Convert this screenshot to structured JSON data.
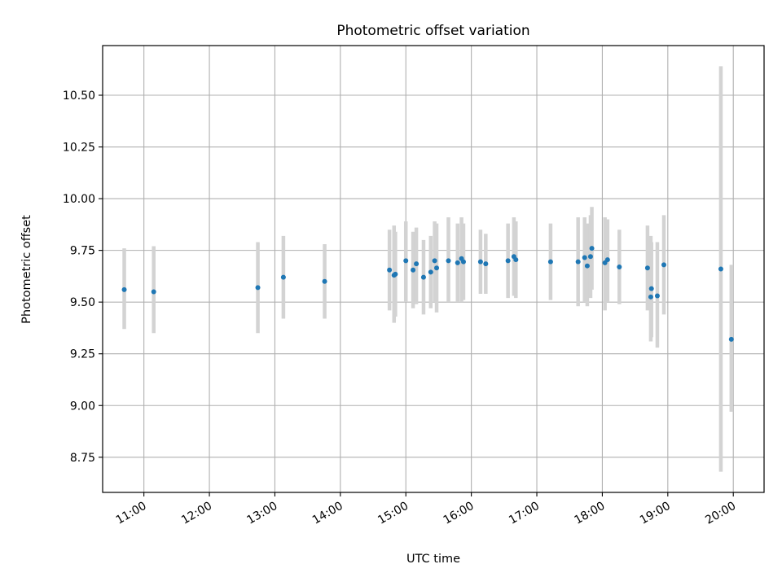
{
  "chart_data": {
    "type": "scatter",
    "title": "Photometric offset variation",
    "xlabel": "UTC time",
    "ylabel": "Photometric offset",
    "x_unit": "hours UTC",
    "xlim": [
      10.37,
      20.47
    ],
    "ylim": [
      8.58,
      10.74
    ],
    "grid": true,
    "x_ticks": [
      {
        "value": 11,
        "label": "11:00"
      },
      {
        "value": 12,
        "label": "12:00"
      },
      {
        "value": 13,
        "label": "13:00"
      },
      {
        "value": 14,
        "label": "14:00"
      },
      {
        "value": 15,
        "label": "15:00"
      },
      {
        "value": 16,
        "label": "16:00"
      },
      {
        "value": 17,
        "label": "17:00"
      },
      {
        "value": 18,
        "label": "18:00"
      },
      {
        "value": 19,
        "label": "19:00"
      },
      {
        "value": 20,
        "label": "20:00"
      }
    ],
    "y_ticks": [
      {
        "value": 8.75,
        "label": "8.75"
      },
      {
        "value": 9.0,
        "label": "9.00"
      },
      {
        "value": 9.25,
        "label": "9.25"
      },
      {
        "value": 9.5,
        "label": "9.50"
      },
      {
        "value": 9.75,
        "label": "9.75"
      },
      {
        "value": 10.0,
        "label": "10.00"
      },
      {
        "value": 10.25,
        "label": "10.25"
      },
      {
        "value": 10.5,
        "label": "10.50"
      }
    ],
    "colors": {
      "point": "#1f77b4",
      "errorbar": "#d3d3d3",
      "grid": "#b0b0b0",
      "axes": "#000000"
    },
    "points": [
      {
        "x": 10.7,
        "y": 9.56,
        "ylo": 9.37,
        "yhi": 9.76
      },
      {
        "x": 11.15,
        "y": 9.55,
        "ylo": 9.35,
        "yhi": 9.77
      },
      {
        "x": 12.74,
        "y": 9.57,
        "ylo": 9.35,
        "yhi": 9.79
      },
      {
        "x": 13.13,
        "y": 9.62,
        "ylo": 9.42,
        "yhi": 9.82
      },
      {
        "x": 13.76,
        "y": 9.6,
        "ylo": 9.42,
        "yhi": 9.78
      },
      {
        "x": 14.75,
        "y": 9.655,
        "ylo": 9.46,
        "yhi": 9.85
      },
      {
        "x": 14.82,
        "y": 9.63,
        "ylo": 9.4,
        "yhi": 9.87
      },
      {
        "x": 14.84,
        "y": 9.635,
        "ylo": 9.43,
        "yhi": 9.84
      },
      {
        "x": 15.0,
        "y": 9.7,
        "ylo": 9.5,
        "yhi": 9.89
      },
      {
        "x": 15.11,
        "y": 9.655,
        "ylo": 9.47,
        "yhi": 9.84
      },
      {
        "x": 15.16,
        "y": 9.685,
        "ylo": 9.49,
        "yhi": 9.86
      },
      {
        "x": 15.27,
        "y": 9.62,
        "ylo": 9.44,
        "yhi": 9.8
      },
      {
        "x": 15.38,
        "y": 9.645,
        "ylo": 9.47,
        "yhi": 9.82
      },
      {
        "x": 15.44,
        "y": 9.7,
        "ylo": 9.5,
        "yhi": 9.89
      },
      {
        "x": 15.47,
        "y": 9.665,
        "ylo": 9.45,
        "yhi": 9.88
      },
      {
        "x": 15.65,
        "y": 9.7,
        "ylo": 9.5,
        "yhi": 9.91
      },
      {
        "x": 15.79,
        "y": 9.69,
        "ylo": 9.5,
        "yhi": 9.88
      },
      {
        "x": 15.85,
        "y": 9.71,
        "ylo": 9.5,
        "yhi": 9.91
      },
      {
        "x": 15.88,
        "y": 9.695,
        "ylo": 9.51,
        "yhi": 9.88
      },
      {
        "x": 16.14,
        "y": 9.695,
        "ylo": 9.54,
        "yhi": 9.85
      },
      {
        "x": 16.22,
        "y": 9.685,
        "ylo": 9.54,
        "yhi": 9.83
      },
      {
        "x": 16.56,
        "y": 9.7,
        "ylo": 9.52,
        "yhi": 9.88
      },
      {
        "x": 16.65,
        "y": 9.72,
        "ylo": 9.53,
        "yhi": 9.91
      },
      {
        "x": 16.68,
        "y": 9.705,
        "ylo": 9.52,
        "yhi": 9.89
      },
      {
        "x": 17.21,
        "y": 9.695,
        "ylo": 9.51,
        "yhi": 9.88
      },
      {
        "x": 17.63,
        "y": 9.695,
        "ylo": 9.48,
        "yhi": 9.91
      },
      {
        "x": 17.73,
        "y": 9.715,
        "ylo": 9.5,
        "yhi": 9.91
      },
      {
        "x": 17.77,
        "y": 9.675,
        "ylo": 9.48,
        "yhi": 9.88
      },
      {
        "x": 17.82,
        "y": 9.72,
        "ylo": 9.52,
        "yhi": 9.92
      },
      {
        "x": 17.84,
        "y": 9.76,
        "ylo": 9.56,
        "yhi": 9.96
      },
      {
        "x": 18.04,
        "y": 9.69,
        "ylo": 9.46,
        "yhi": 9.91
      },
      {
        "x": 18.08,
        "y": 9.705,
        "ylo": 9.5,
        "yhi": 9.9
      },
      {
        "x": 18.26,
        "y": 9.67,
        "ylo": 9.49,
        "yhi": 9.85
      },
      {
        "x": 18.69,
        "y": 9.665,
        "ylo": 9.46,
        "yhi": 9.87
      },
      {
        "x": 18.74,
        "y": 9.525,
        "ylo": 9.31,
        "yhi": 9.82
      },
      {
        "x": 18.75,
        "y": 9.565,
        "ylo": 9.33,
        "yhi": 9.79
      },
      {
        "x": 18.84,
        "y": 9.53,
        "ylo": 9.28,
        "yhi": 9.79
      },
      {
        "x": 18.94,
        "y": 9.68,
        "ylo": 9.44,
        "yhi": 9.92
      },
      {
        "x": 19.81,
        "y": 9.66,
        "ylo": 8.68,
        "yhi": 10.64
      },
      {
        "x": 19.97,
        "y": 9.32,
        "ylo": 8.97,
        "yhi": 9.68
      }
    ]
  }
}
